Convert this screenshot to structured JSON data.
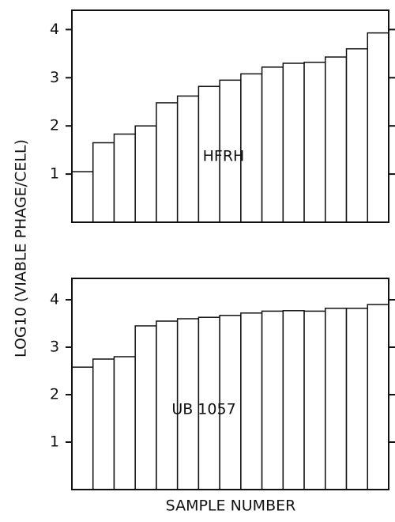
{
  "ylabel": "LOG10 (VIABLE PHAGE/CELL)",
  "xlabel": "SAMPLE NUMBER",
  "chart_data": [
    {
      "type": "bar",
      "annotation": "HFRH",
      "categories": [
        null,
        null,
        null,
        null,
        null,
        null,
        null,
        null,
        null,
        null,
        null,
        null,
        null,
        null,
        null
      ],
      "values": [
        1.05,
        1.65,
        1.83,
        2.0,
        2.48,
        2.62,
        2.82,
        2.95,
        3.08,
        3.22,
        3.3,
        3.32,
        3.43,
        3.6,
        3.93
      ],
      "color": "#ffffff",
      "ylim": [
        0,
        4.4
      ],
      "yticks": [
        1,
        2,
        3,
        4
      ]
    },
    {
      "type": "bar",
      "annotation": "UB 1057",
      "categories": [
        null,
        null,
        null,
        null,
        null,
        null,
        null,
        null,
        null,
        null,
        null,
        null,
        null,
        null,
        null
      ],
      "values": [
        2.58,
        2.75,
        2.8,
        3.45,
        3.55,
        3.6,
        3.63,
        3.67,
        3.72,
        3.76,
        3.77,
        3.76,
        3.82,
        3.82,
        3.9
      ],
      "color": "#ffffff",
      "ylim": [
        0,
        4.45
      ],
      "yticks": [
        1,
        2,
        3,
        4
      ]
    }
  ]
}
